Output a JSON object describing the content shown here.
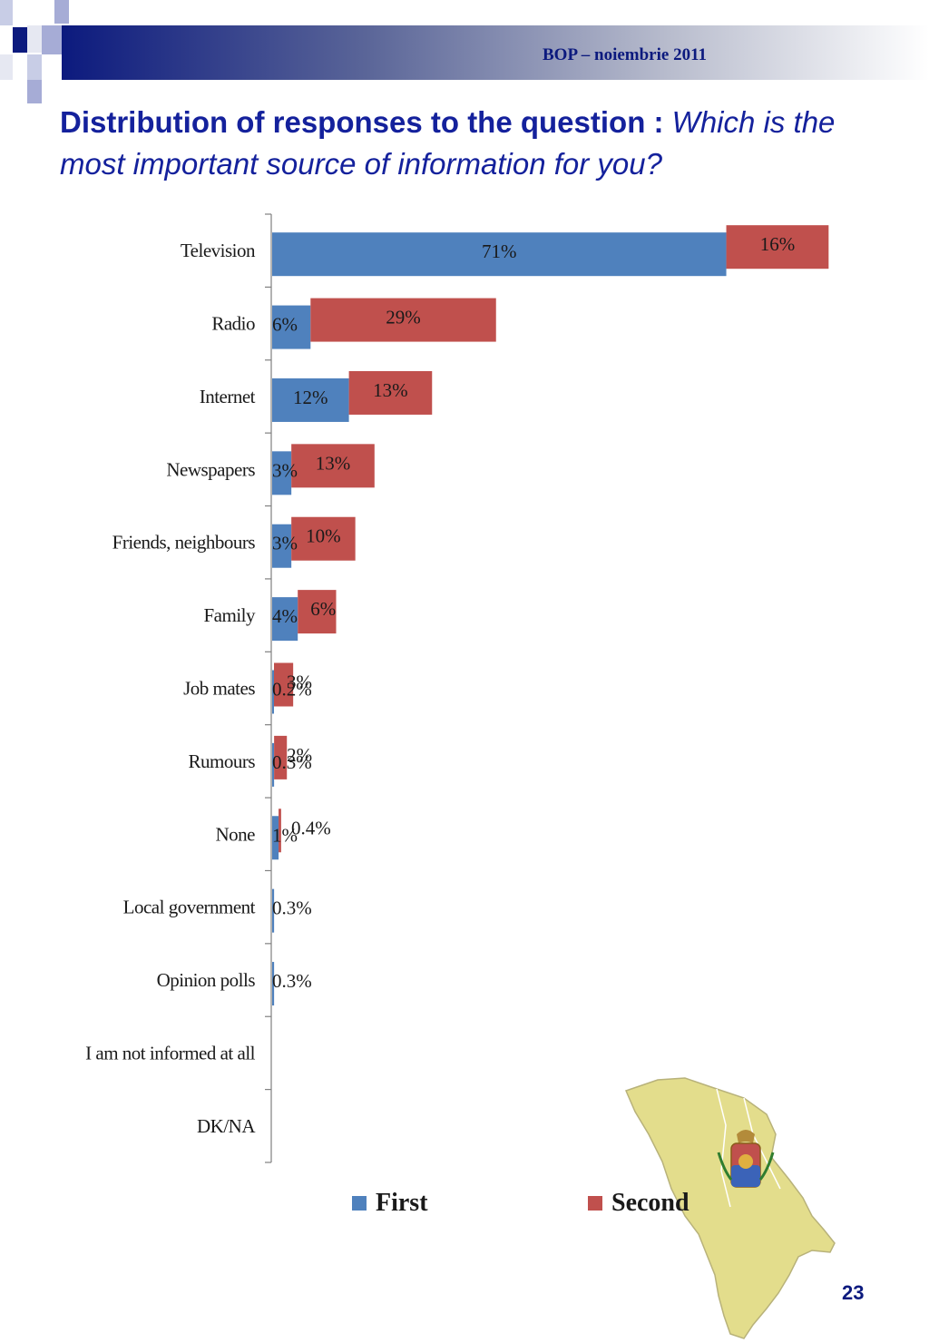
{
  "header": {
    "text": "BOP  – noiembrie 2011"
  },
  "title": {
    "bold_part": "Distribution of responses to the question :",
    "italic_part": " Which is the most important source of information for you?"
  },
  "colors": {
    "first": "#4f81bd",
    "second": "#c0504d",
    "title": "#14219c",
    "header_dark": "#0c1a7e",
    "map_fill": "#e3dd8c"
  },
  "chart_data": {
    "type": "bar",
    "orientation": "horizontal",
    "stacked": true,
    "categories": [
      "Television",
      "Radio",
      "Internet",
      "Newspapers",
      "Friends, neighbours",
      "Family",
      "Job mates",
      "Rumours",
      "None",
      "Local government",
      "Opinion polls",
      "I am not informed at all",
      "DK/NA"
    ],
    "series": [
      {
        "name": "First",
        "values": [
          71,
          6,
          12,
          3,
          3,
          4,
          0.2,
          0.3,
          1,
          0.3,
          0.3,
          null,
          null
        ],
        "labels": [
          "71%",
          "6%",
          "12%",
          "3%",
          "3%",
          "4%",
          "0.2%",
          "0.3%",
          "1%",
          "0.3%",
          "0.3%",
          "",
          ""
        ]
      },
      {
        "name": "Second",
        "values": [
          16,
          29,
          13,
          13,
          10,
          6,
          3,
          2,
          0.4,
          null,
          null,
          null,
          null
        ],
        "labels": [
          "16%",
          "29%",
          "13%",
          "13%",
          "10%",
          "6%",
          "3%",
          "2%",
          "0.4%",
          "",
          "",
          "",
          ""
        ]
      }
    ],
    "legend_position": "bottom",
    "grid": false
  },
  "page_number": "23"
}
